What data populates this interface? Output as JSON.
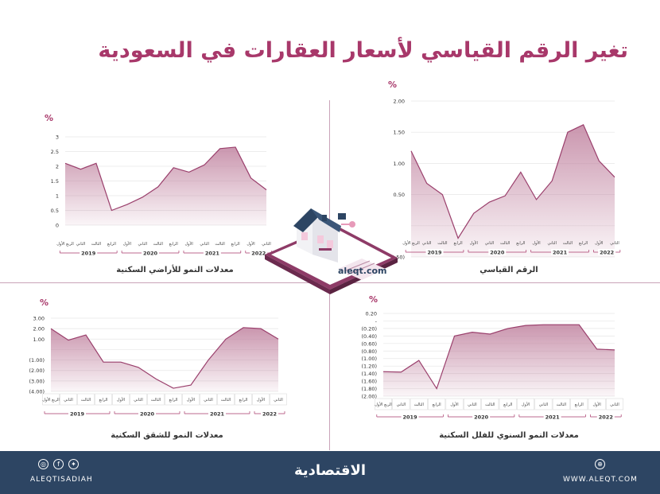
{
  "title": "تغير الرقم القياسي لأسعار العقارات في السعودية",
  "colors": {
    "accent": "#a8386a",
    "line": "#9a3f6c",
    "fill": "#c48aa5",
    "footer": "#2d4563"
  },
  "footer": {
    "handle": "ALEQTISADIAH",
    "website": "WWW.ALEQT.COM",
    "logo": "الاقتصادية",
    "icons": [
      "instagram-icon",
      "facebook-icon",
      "twitter-icon",
      "web-icon"
    ]
  },
  "illustration": {
    "label": "aleqt.com"
  },
  "chart_data": [
    {
      "type": "area",
      "caption": "الرقم القياسي",
      "unit": "%",
      "categories": [
        "الربع الأول",
        "الثاني",
        "الثالث",
        "الرابع",
        "الأول",
        "الثاني",
        "الثالث",
        "الرابع",
        "الأول",
        "الثاني",
        "الثالث",
        "الرابع",
        "الأول",
        "الثاني"
      ],
      "year_groups": [
        {
          "label": "2019",
          "start": 0,
          "end": 3
        },
        {
          "label": "2020",
          "start": 4,
          "end": 7
        },
        {
          "label": "2021",
          "start": 8,
          "end": 11
        },
        {
          "label": "2022",
          "start": 12,
          "end": 13
        }
      ],
      "values": [
        1.2,
        0.68,
        0.5,
        -0.2,
        0.2,
        0.38,
        0.48,
        0.86,
        0.42,
        0.72,
        1.5,
        1.62,
        1.04,
        0.78
      ],
      "yticks": [
        "2.00",
        "1.50",
        "1.00",
        "0.50",
        "",
        "(0.50)"
      ],
      "ylim": [
        -0.5,
        2.0
      ]
    },
    {
      "type": "area",
      "caption": "معدلات النمو للأراضي السكنية",
      "unit": "%",
      "categories": [
        "الربع الأول",
        "الثاني",
        "الثالث",
        "الرابع",
        "الأول",
        "الثاني",
        "الثالث",
        "الرابع",
        "الأول",
        "الثاني",
        "الثالث",
        "الرابع",
        "الأول",
        "الثاني"
      ],
      "year_groups": [
        {
          "label": "2019",
          "start": 0,
          "end": 3
        },
        {
          "label": "2020",
          "start": 4,
          "end": 7
        },
        {
          "label": "2021",
          "start": 8,
          "end": 11
        },
        {
          "label": "2022",
          "start": 12,
          "end": 13
        }
      ],
      "values": [
        2.1,
        1.9,
        2.1,
        0.5,
        0.7,
        0.95,
        1.3,
        1.95,
        1.8,
        2.05,
        2.6,
        2.65,
        1.6,
        1.2
      ],
      "yticks": [
        "3",
        "2.5",
        "2",
        "1.5",
        "1",
        "0.5",
        "0"
      ],
      "ylim": [
        0,
        3
      ]
    },
    {
      "type": "area",
      "caption": "معدلات النمو السنوي للفلل السكنية",
      "unit": "%",
      "categories": [
        "الربع الأول",
        "الثاني",
        "الثالث",
        "الرابع",
        "الأول",
        "الثاني",
        "الثالث",
        "الرابع",
        "الأول",
        "الثاني",
        "الثالث",
        "الرابع",
        "الأول",
        "الثاني"
      ],
      "year_groups": [
        {
          "label": "2019",
          "start": 0,
          "end": 3
        },
        {
          "label": "2020",
          "start": 4,
          "end": 7
        },
        {
          "label": "2021",
          "start": 8,
          "end": 11
        },
        {
          "label": "2022",
          "start": 12,
          "end": 13
        }
      ],
      "values": [
        -1.35,
        -1.36,
        -1.05,
        -1.8,
        -0.4,
        -0.3,
        -0.35,
        -0.2,
        -0.12,
        -0.1,
        -0.1,
        -0.1,
        -0.75,
        -0.77
      ],
      "yticks": [
        "0.20",
        "-",
        "(0.20)",
        "(0.40)",
        "(0.60)",
        "(0.80)",
        "(1.00)",
        "(1.20)",
        "(1.40)",
        "(1.60)",
        "(1.80)",
        "(2.00)"
      ],
      "ylim": [
        -2.0,
        0.2
      ]
    },
    {
      "type": "area",
      "caption": "معدلات النمو للشقق السكنية",
      "unit": "%",
      "categories": [
        "الربع الأول",
        "الثاني",
        "الثالث",
        "الرابع",
        "الأول",
        "الثاني",
        "الثالث",
        "الرابع",
        "الأول",
        "الثاني",
        "الثالث",
        "الرابع",
        "الأول",
        "الثاني"
      ],
      "year_groups": [
        {
          "label": "2019",
          "start": 0,
          "end": 3
        },
        {
          "label": "2020",
          "start": 4,
          "end": 7
        },
        {
          "label": "2021",
          "start": 8,
          "end": 11
        },
        {
          "label": "2022",
          "start": 12,
          "end": 13
        }
      ],
      "values": [
        2.0,
        0.9,
        1.4,
        -1.2,
        -1.2,
        -1.7,
        -2.8,
        -3.7,
        -3.4,
        -1.0,
        1.0,
        2.1,
        2.0,
        1.0
      ],
      "yticks": [
        "3.00",
        "2.00",
        "1.00",
        "",
        "(1.00)",
        "(2.00)",
        "(3.00)",
        "(4.00)"
      ],
      "ylim": [
        -4.0,
        3.0
      ]
    }
  ]
}
